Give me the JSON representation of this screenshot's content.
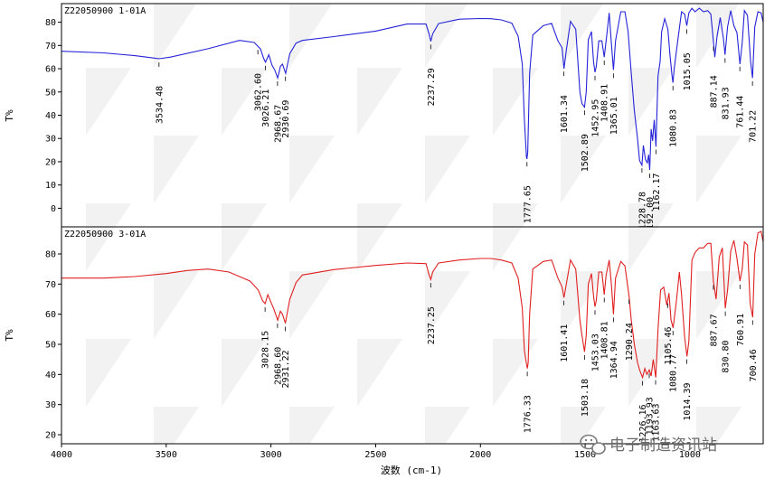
{
  "chart_data": [
    {
      "type": "line",
      "title": "Z22050900 1-01A",
      "ylabel": "T%",
      "xlim": [
        4000,
        650
      ],
      "ylim": [
        -8,
        88
      ],
      "y_ticks": [
        0,
        10,
        20,
        30,
        40,
        50,
        60,
        70,
        80
      ],
      "color": "#2424d8",
      "series": [
        {
          "x": [
            4000,
            3800,
            3650,
            3560,
            3534,
            3480,
            3300,
            3150,
            3080,
            3050,
            3035,
            3026,
            3010,
            2995,
            2982,
            2968,
            2955,
            2945,
            2930,
            2910,
            2880,
            2850,
            2700,
            2500,
            2350,
            2260,
            2245,
            2237,
            2228,
            2200,
            2100,
            2000,
            1950,
            1900,
            1850,
            1820,
            1800,
            1790,
            1780,
            1778,
            1774,
            1765,
            1750,
            1700,
            1660,
            1630,
            1610,
            1601,
            1590,
            1570,
            1545,
            1525,
            1515,
            1503,
            1495,
            1485,
            1470,
            1460,
            1453,
            1447,
            1435,
            1420,
            1409,
            1400,
            1385,
            1375,
            1365,
            1355,
            1330,
            1310,
            1295,
            1280,
            1265,
            1250,
            1240,
            1229,
            1222,
            1212,
            1203,
            1197,
            1192,
            1185,
            1178,
            1170,
            1162,
            1152,
            1142,
            1135,
            1120,
            1105,
            1095,
            1085,
            1081,
            1075,
            1060,
            1040,
            1025,
            1015,
            1005,
            990,
            975,
            955,
            935,
            915,
            900,
            888,
            881,
            870,
            855,
            840,
            832,
            820,
            805,
            790,
            775,
            761,
            750,
            740,
            725,
            710,
            701,
            690,
            675,
            660,
            650
          ],
          "y": [
            67.5,
            66.8,
            65.6,
            64.6,
            64.3,
            65.0,
            68.6,
            72.2,
            71.3,
            68.5,
            64.5,
            62.8,
            66.0,
            61.5,
            59.5,
            56.0,
            61.0,
            62.0,
            58.0,
            66.5,
            71.0,
            72.2,
            73.8,
            76.2,
            79.2,
            79.2,
            75.0,
            71.8,
            75.0,
            79.4,
            81.3,
            81.6,
            81.5,
            81.0,
            79.6,
            74.0,
            62.0,
            38.0,
            22.0,
            21.2,
            24.0,
            58.0,
            74.5,
            78.5,
            79.5,
            72.0,
            69.0,
            60.0,
            68.0,
            80.4,
            77.0,
            50.0,
            45.0,
            43.5,
            50.0,
            72.5,
            76.0,
            63.0,
            58.5,
            61.0,
            72.0,
            72.0,
            65.0,
            72.0,
            84.0,
            71.0,
            59.5,
            72.0,
            84.5,
            84.5,
            76.0,
            58.0,
            42.0,
            30.0,
            20.5,
            18.5,
            27.0,
            21.0,
            19.5,
            23.0,
            16.5,
            34.0,
            29.0,
            38.0,
            26.5,
            57.0,
            63.0,
            76.0,
            81.5,
            77.0,
            66.0,
            57.0,
            54.0,
            60.0,
            70.5,
            84.5,
            83.5,
            78.5,
            84.0,
            86.0,
            84.5,
            86.0,
            84.5,
            85.0,
            83.5,
            72.0,
            65.0,
            74.0,
            82.0,
            73.0,
            66.0,
            78.0,
            85.0,
            78.5,
            75.5,
            62.0,
            71.0,
            85.0,
            83.0,
            63.0,
            56.0,
            78.0,
            84.5,
            84.0,
            80.0
          ]
        }
      ],
      "peak_labels": [
        {
          "x": 3534.48,
          "text": "3534.48"
        },
        {
          "x": 3062.6,
          "text": "3062.60"
        },
        {
          "x": 3026.21,
          "text": "3026.21"
        },
        {
          "x": 2968.67,
          "text": "2968.67"
        },
        {
          "x": 2930.69,
          "text": "2930.69"
        },
        {
          "x": 2237.29,
          "text": "2237.29"
        },
        {
          "x": 1777.65,
          "text": "1777.65"
        },
        {
          "x": 1601.34,
          "text": "1601.34"
        },
        {
          "x": 1502.89,
          "text": "1502.89"
        },
        {
          "x": 1452.95,
          "text": "1452.95"
        },
        {
          "x": 1408.91,
          "text": "1408.91"
        },
        {
          "x": 1365.01,
          "text": "1365.01"
        },
        {
          "x": 1228.78,
          "text": "1228.78"
        },
        {
          "x": 1192.0,
          "text": "1192.00"
        },
        {
          "x": 1162.17,
          "text": "1162.17"
        },
        {
          "x": 1080.83,
          "text": "1080.83"
        },
        {
          "x": 1015.05,
          "text": "1015.05"
        },
        {
          "x": 887.14,
          "text": "887.14"
        },
        {
          "x": 831.93,
          "text": "831.93"
        },
        {
          "x": 761.44,
          "text": "761.44"
        },
        {
          "x": 701.22,
          "text": "701.22"
        }
      ]
    },
    {
      "type": "line",
      "title": "Z22050900 3-01A",
      "ylabel": "T%",
      "xlabel": "波数 (cm-1)",
      "xlim": [
        4000,
        650
      ],
      "ylim": [
        17,
        89
      ],
      "x_ticks": [
        4000,
        3500,
        3000,
        2500,
        2000,
        1500,
        1000
      ],
      "y_ticks": [
        20,
        30,
        40,
        50,
        60,
        70,
        80
      ],
      "color": "#e02020",
      "series": [
        {
          "x": [
            4000,
            3800,
            3650,
            3500,
            3400,
            3300,
            3200,
            3100,
            3060,
            3040,
            3028,
            3015,
            3000,
            2985,
            2968,
            2955,
            2945,
            2931,
            2910,
            2880,
            2850,
            2700,
            2500,
            2350,
            2260,
            2245,
            2237,
            2228,
            2200,
            2100,
            2000,
            1950,
            1900,
            1850,
            1820,
            1800,
            1790,
            1780,
            1776,
            1772,
            1765,
            1750,
            1700,
            1660,
            1630,
            1610,
            1601,
            1590,
            1570,
            1545,
            1525,
            1515,
            1503,
            1495,
            1485,
            1470,
            1460,
            1453,
            1447,
            1435,
            1420,
            1409,
            1400,
            1385,
            1375,
            1365,
            1355,
            1330,
            1310,
            1290,
            1280,
            1265,
            1250,
            1240,
            1226,
            1215,
            1205,
            1194,
            1185,
            1175,
            1163,
            1152,
            1140,
            1125,
            1110,
            1100,
            1090,
            1080,
            1065,
            1050,
            1040,
            1025,
            1014,
            1005,
            990,
            975,
            955,
            935,
            915,
            900,
            888,
            875,
            860,
            845,
            831,
            820,
            805,
            790,
            775,
            761,
            750,
            740,
            725,
            712,
            700,
            690,
            675,
            660,
            650
          ],
          "y": [
            72.0,
            72.0,
            72.5,
            73.5,
            74.5,
            75.0,
            74.0,
            71.0,
            68.0,
            64.5,
            63.5,
            66.5,
            64.0,
            61.5,
            58.0,
            61.0,
            60.0,
            57.0,
            65.0,
            70.5,
            73.0,
            74.8,
            76.2,
            77.0,
            76.8,
            73.0,
            71.5,
            74.0,
            77.0,
            78.0,
            78.5,
            78.5,
            78.0,
            77.0,
            72.0,
            62.0,
            48.0,
            43.5,
            42.0,
            44.0,
            60.0,
            75.0,
            77.5,
            78.0,
            72.0,
            69.0,
            65.5,
            70.0,
            78.0,
            75.0,
            58.0,
            53.0,
            47.5,
            53.0,
            70.0,
            73.5,
            66.0,
            62.5,
            64.5,
            74.0,
            74.0,
            66.5,
            73.0,
            78.0,
            70.0,
            60.0,
            72.0,
            77.5,
            76.0,
            66.0,
            58.0,
            50.0,
            44.0,
            41.5,
            39.0,
            42.0,
            40.0,
            41.5,
            39.5,
            45.0,
            39.0,
            55.0,
            68.0,
            69.0,
            63.0,
            67.0,
            58.0,
            55.5,
            64.0,
            74.0,
            66.5,
            52.5,
            46.0,
            51.0,
            78.0,
            80.5,
            82.0,
            82.0,
            83.5,
            83.5,
            71.0,
            65.0,
            79.0,
            82.0,
            62.0,
            68.0,
            81.0,
            84.5,
            78.5,
            71.0,
            75.0,
            84.0,
            83.0,
            63.5,
            59.0,
            80.0,
            87.0,
            87.5,
            84.0
          ]
        }
      ],
      "peak_labels": [
        {
          "x": 3028.15,
          "text": "3028.15"
        },
        {
          "x": 2968.6,
          "text": "2968.60"
        },
        {
          "x": 2931.22,
          "text": "2931.22"
        },
        {
          "x": 2237.25,
          "text": "2237.25"
        },
        {
          "x": 1776.33,
          "text": "1776.33"
        },
        {
          "x": 1601.41,
          "text": "1601.41"
        },
        {
          "x": 1503.18,
          "text": "1503.18"
        },
        {
          "x": 1453.03,
          "text": "1453.03"
        },
        {
          "x": 1408.81,
          "text": "1408.81"
        },
        {
          "x": 1364.94,
          "text": "1364.94"
        },
        {
          "x": 1290.24,
          "text": "1290.24"
        },
        {
          "x": 1226.16,
          "text": "1226.16"
        },
        {
          "x": 1193.93,
          "text": "1193.93"
        },
        {
          "x": 1163.63,
          "text": "1163.63"
        },
        {
          "x": 1105.46,
          "text": "1105.46"
        },
        {
          "x": 1080.77,
          "text": "1080.77"
        },
        {
          "x": 1014.39,
          "text": "1014.39"
        },
        {
          "x": 887.67,
          "text": "887.67"
        },
        {
          "x": 830.8,
          "text": "830.80"
        },
        {
          "x": 760.91,
          "text": "760.91"
        },
        {
          "x": 700.46,
          "text": "700.46"
        }
      ]
    }
  ],
  "watermark": {
    "text": "电子制造资讯站",
    "icon": "wechat-icon"
  }
}
